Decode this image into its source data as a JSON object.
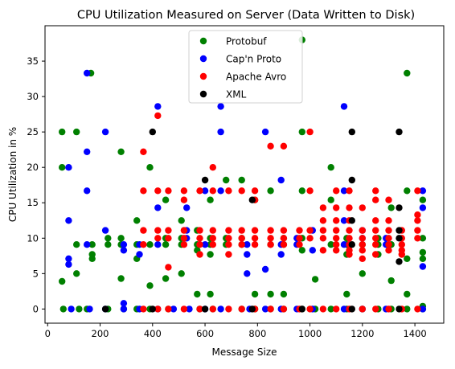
{
  "chart_data": {
    "type": "scatter",
    "title": "CPU Utilization Measured on Server (Data Written to Disk)",
    "xlabel": "Message Size",
    "ylabel": "CPU Utilization in %",
    "xlim": [
      -10,
      1510
    ],
    "ylim": [
      -2,
      40
    ],
    "x_ticks": [
      0,
      200,
      400,
      600,
      800,
      1000,
      1200,
      1400
    ],
    "y_ticks": [
      0,
      5,
      10,
      15,
      20,
      25,
      30,
      35
    ],
    "grid": false,
    "legend_position": "top-center",
    "series": [
      {
        "name": "Protobuf",
        "color": "#008000",
        "points": [
          [
            55,
            25
          ],
          [
            55,
            20
          ],
          [
            55,
            3.9
          ],
          [
            60,
            0
          ],
          [
            110,
            25
          ],
          [
            110,
            9.1
          ],
          [
            110,
            5
          ],
          [
            120,
            0
          ],
          [
            165,
            33.3
          ],
          [
            170,
            9.1
          ],
          [
            170,
            7.7
          ],
          [
            170,
            7.1
          ],
          [
            150,
            0
          ],
          [
            230,
            10
          ],
          [
            230,
            9.1
          ],
          [
            230,
            0
          ],
          [
            280,
            22.2
          ],
          [
            280,
            10
          ],
          [
            280,
            9.1
          ],
          [
            280,
            4.3
          ],
          [
            290,
            0
          ],
          [
            340,
            12.5
          ],
          [
            340,
            9.1
          ],
          [
            340,
            7.1
          ],
          [
            340,
            0
          ],
          [
            390,
            20
          ],
          [
            390,
            9.1
          ],
          [
            390,
            3.3
          ],
          [
            390,
            0
          ],
          [
            450,
            15.4
          ],
          [
            450,
            10
          ],
          [
            450,
            9.1
          ],
          [
            450,
            4.3
          ],
          [
            460,
            0
          ],
          [
            510,
            12.5
          ],
          [
            510,
            10
          ],
          [
            510,
            9.1
          ],
          [
            510,
            5
          ],
          [
            570,
            11.1
          ],
          [
            570,
            9.1
          ],
          [
            570,
            8.3
          ],
          [
            570,
            2.1
          ],
          [
            580,
            0
          ],
          [
            620,
            15.4
          ],
          [
            620,
            10
          ],
          [
            620,
            9.1
          ],
          [
            620,
            7.7
          ],
          [
            620,
            2.1
          ],
          [
            630,
            0
          ],
          [
            680,
            18.2
          ],
          [
            680,
            10
          ],
          [
            680,
            9.1
          ],
          [
            740,
            18.2
          ],
          [
            740,
            10
          ],
          [
            740,
            9.1
          ],
          [
            740,
            0
          ],
          [
            790,
            15.4
          ],
          [
            790,
            2.1
          ],
          [
            790,
            0
          ],
          [
            850,
            16.7
          ],
          [
            850,
            9.1
          ],
          [
            850,
            2.1
          ],
          [
            850,
            0
          ],
          [
            900,
            10
          ],
          [
            900,
            9.1
          ],
          [
            900,
            2.1
          ],
          [
            900,
            0
          ],
          [
            970,
            38
          ],
          [
            970,
            25
          ],
          [
            970,
            16.7
          ],
          [
            970,
            10
          ],
          [
            970,
            8.3
          ],
          [
            970,
            0
          ],
          [
            1020,
            4.2
          ],
          [
            1020,
            0
          ],
          [
            1080,
            20
          ],
          [
            1080,
            15.4
          ],
          [
            1080,
            9.1
          ],
          [
            1080,
            0
          ],
          [
            1140,
            10
          ],
          [
            1140,
            9.1
          ],
          [
            1140,
            7.7
          ],
          [
            1140,
            2.1
          ],
          [
            1140,
            0
          ],
          [
            1200,
            9.1
          ],
          [
            1200,
            5
          ],
          [
            1200,
            0
          ],
          [
            1260,
            10
          ],
          [
            1260,
            9.1
          ],
          [
            1260,
            7.7
          ],
          [
            1260,
            0
          ],
          [
            1310,
            14.3
          ],
          [
            1310,
            9.1
          ],
          [
            1310,
            4
          ],
          [
            1310,
            0
          ],
          [
            1370,
            33.3
          ],
          [
            1370,
            16.7
          ],
          [
            1370,
            7.1
          ],
          [
            1370,
            2.1
          ],
          [
            1370,
            0
          ],
          [
            1430,
            15.4
          ],
          [
            1430,
            10
          ],
          [
            1430,
            8
          ],
          [
            1430,
            7.1
          ],
          [
            1430,
            0.4
          ],
          [
            1430,
            0
          ]
        ]
      },
      {
        "name": "Cap'n Proto",
        "color": "#0000ff",
        "points": [
          [
            80,
            20
          ],
          [
            80,
            12.5
          ],
          [
            80,
            7.1
          ],
          [
            80,
            6.3
          ],
          [
            90,
            0
          ],
          [
            150,
            33.3
          ],
          [
            150,
            22.2
          ],
          [
            150,
            16.7
          ],
          [
            150,
            9.1
          ],
          [
            160,
            0
          ],
          [
            220,
            25
          ],
          [
            220,
            11.1
          ],
          [
            220,
            0
          ],
          [
            290,
            9.1
          ],
          [
            290,
            8.3
          ],
          [
            290,
            0.8
          ],
          [
            290,
            0
          ],
          [
            350,
            9.1
          ],
          [
            350,
            7.7
          ],
          [
            350,
            0
          ],
          [
            420,
            28.6
          ],
          [
            420,
            14.3
          ],
          [
            420,
            9.1
          ],
          [
            420,
            0
          ],
          [
            480,
            0
          ],
          [
            530,
            14.3
          ],
          [
            530,
            11.1
          ],
          [
            530,
            10
          ],
          [
            540,
            0
          ],
          [
            600,
            16.7
          ],
          [
            600,
            9.1
          ],
          [
            600,
            0
          ],
          [
            660,
            28.6
          ],
          [
            660,
            25
          ],
          [
            660,
            16.7
          ],
          [
            660,
            0
          ],
          [
            760,
            9.1
          ],
          [
            760,
            7.7
          ],
          [
            760,
            5
          ],
          [
            770,
            0
          ],
          [
            830,
            25
          ],
          [
            830,
            5.6
          ],
          [
            830,
            0
          ],
          [
            890,
            18.2
          ],
          [
            890,
            9.1
          ],
          [
            890,
            7.7
          ],
          [
            890,
            0
          ],
          [
            950,
            10
          ],
          [
            950,
            9.1
          ],
          [
            950,
            0
          ],
          [
            1010,
            11.1
          ],
          [
            1010,
            8.3
          ],
          [
            1010,
            0
          ],
          [
            1130,
            28.6
          ],
          [
            1130,
            16.7
          ],
          [
            1130,
            12.5
          ],
          [
            1130,
            9.1
          ],
          [
            1130,
            0
          ],
          [
            1200,
            11.1
          ],
          [
            1200,
            10
          ],
          [
            1200,
            0
          ],
          [
            1290,
            10
          ],
          [
            1290,
            9.1
          ],
          [
            1290,
            0
          ],
          [
            1430,
            16.7
          ],
          [
            1430,
            14.3
          ],
          [
            1430,
            6
          ],
          [
            1430,
            0
          ]
        ]
      },
      {
        "name": "Apache Avro",
        "color": "#ff0000",
        "points": [
          [
            365,
            22.2
          ],
          [
            365,
            16.7
          ],
          [
            365,
            11.1
          ],
          [
            365,
            9.1
          ],
          [
            365,
            0
          ],
          [
            420,
            27.3
          ],
          [
            420,
            16.7
          ],
          [
            420,
            11.1
          ],
          [
            420,
            10
          ],
          [
            420,
            0
          ],
          [
            460,
            16.7
          ],
          [
            460,
            11.1
          ],
          [
            460,
            10
          ],
          [
            460,
            5.9
          ],
          [
            460,
            0
          ],
          [
            520,
            16.7
          ],
          [
            520,
            15.4
          ],
          [
            520,
            11.1
          ],
          [
            520,
            10
          ],
          [
            520,
            9.1
          ],
          [
            520,
            0
          ],
          [
            580,
            16.7
          ],
          [
            580,
            11.1
          ],
          [
            580,
            10
          ],
          [
            580,
            9.1
          ],
          [
            580,
            7.7
          ],
          [
            580,
            0
          ],
          [
            630,
            20
          ],
          [
            630,
            16.7
          ],
          [
            630,
            11.1
          ],
          [
            630,
            10
          ],
          [
            630,
            9.1
          ],
          [
            630,
            0
          ],
          [
            690,
            16.7
          ],
          [
            690,
            11.1
          ],
          [
            690,
            10
          ],
          [
            690,
            9.1
          ],
          [
            690,
            7.7
          ],
          [
            690,
            0
          ],
          [
            740,
            16.7
          ],
          [
            740,
            11.1
          ],
          [
            740,
            10
          ],
          [
            740,
            9.1
          ],
          [
            740,
            0
          ],
          [
            790,
            16.7
          ],
          [
            790,
            15.4
          ],
          [
            790,
            11.1
          ],
          [
            790,
            10
          ],
          [
            790,
            9.1
          ],
          [
            790,
            0
          ],
          [
            850,
            23
          ],
          [
            850,
            11.1
          ],
          [
            850,
            10
          ],
          [
            850,
            9.1
          ],
          [
            850,
            0
          ],
          [
            900,
            23
          ],
          [
            900,
            11.1
          ],
          [
            900,
            10
          ],
          [
            900,
            9.1
          ],
          [
            900,
            0
          ],
          [
            960,
            11.1
          ],
          [
            960,
            10
          ],
          [
            960,
            9.1
          ],
          [
            960,
            0
          ],
          [
            1000,
            25
          ],
          [
            1000,
            16.7
          ],
          [
            1000,
            11.1
          ],
          [
            1000,
            10
          ],
          [
            1000,
            0
          ],
          [
            1050,
            14.3
          ],
          [
            1050,
            12.5
          ],
          [
            1050,
            11.1
          ],
          [
            1050,
            10
          ],
          [
            1050,
            8.3
          ],
          [
            1050,
            0
          ],
          [
            1100,
            16.7
          ],
          [
            1100,
            14.3
          ],
          [
            1100,
            12.5
          ],
          [
            1100,
            11.1
          ],
          [
            1100,
            10
          ],
          [
            1100,
            9.1
          ],
          [
            1100,
            8.3
          ],
          [
            1100,
            0
          ],
          [
            1150,
            16.7
          ],
          [
            1150,
            14.3
          ],
          [
            1150,
            12.5
          ],
          [
            1150,
            11.1
          ],
          [
            1150,
            10
          ],
          [
            1150,
            9.1
          ],
          [
            1150,
            8.3
          ],
          [
            1150,
            7.7
          ],
          [
            1150,
            0
          ],
          [
            1200,
            14.3
          ],
          [
            1200,
            11.1
          ],
          [
            1200,
            10
          ],
          [
            1200,
            9.1
          ],
          [
            1200,
            8.3
          ],
          [
            1200,
            7.1
          ],
          [
            1200,
            0
          ],
          [
            1250,
            16.7
          ],
          [
            1250,
            15.4
          ],
          [
            1250,
            12.5
          ],
          [
            1250,
            11.1
          ],
          [
            1250,
            10
          ],
          [
            1250,
            9.1
          ],
          [
            1250,
            7.7
          ],
          [
            1250,
            0
          ],
          [
            1300,
            15.4
          ],
          [
            1300,
            12.5
          ],
          [
            1300,
            11.1
          ],
          [
            1300,
            10
          ],
          [
            1300,
            9.1
          ],
          [
            1300,
            8.3
          ],
          [
            1300,
            0
          ],
          [
            1350,
            11.1
          ],
          [
            1350,
            10
          ],
          [
            1350,
            9.1
          ],
          [
            1350,
            8.3
          ],
          [
            1350,
            7.7
          ],
          [
            1350,
            0
          ],
          [
            1410,
            16.7
          ],
          [
            1410,
            13.3
          ],
          [
            1410,
            12.5
          ],
          [
            1410,
            11.1
          ],
          [
            1410,
            10
          ],
          [
            1410,
            0
          ]
        ]
      },
      {
        "name": "XML",
        "color": "#000000",
        "points": [
          [
            220,
            0
          ],
          [
            400,
            25
          ],
          [
            400,
            0
          ],
          [
            600,
            18.2
          ],
          [
            600,
            0
          ],
          [
            780,
            15.4
          ],
          [
            780,
            0
          ],
          [
            970,
            0
          ],
          [
            1160,
            25
          ],
          [
            1160,
            18.2
          ],
          [
            1160,
            12.5
          ],
          [
            1160,
            9.1
          ],
          [
            1160,
            0
          ],
          [
            1340,
            25
          ],
          [
            1340,
            14.3
          ],
          [
            1340,
            11.1
          ],
          [
            1340,
            10
          ],
          [
            1340,
            6.7
          ],
          [
            1340,
            0
          ]
        ]
      }
    ]
  }
}
